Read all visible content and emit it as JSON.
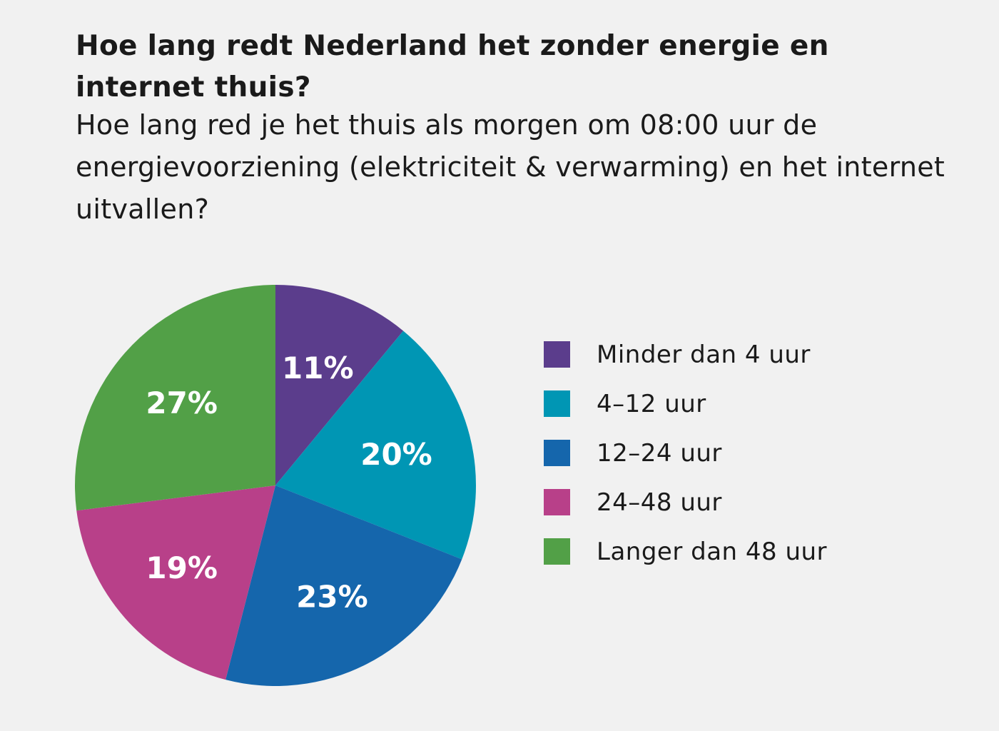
{
  "header": {
    "title": "Hoe lang redt Nederland het zonder energie en internet thuis?",
    "subtitle": "Hoe lang red je het thuis als morgen om 08:00 uur de energievoorziening (elektriciteit & verwarming) en het internet uitvallen?"
  },
  "chart_data": {
    "type": "pie",
    "title": "Hoe lang redt Nederland het zonder energie en internet thuis?",
    "subtitle": "Hoe lang red je het thuis als morgen om 08:00 uur de energievoorziening (elektriciteit & verwarming) en het internet uitvallen?",
    "unit": "%",
    "categories": [
      "Minder dan 4 uur",
      "4–12 uur",
      "12–24 uur",
      "24–48 uur",
      "Langer dan 48 uur"
    ],
    "values": [
      11,
      20,
      23,
      19,
      27
    ],
    "value_labels": [
      "11%",
      "20%",
      "23%",
      "19%",
      "27%"
    ],
    "colors": [
      "#5b3d8c",
      "#0096b4",
      "#1566ac",
      "#b84089",
      "#52a047"
    ],
    "start": "top",
    "direction": "clockwise",
    "legend": "right"
  }
}
